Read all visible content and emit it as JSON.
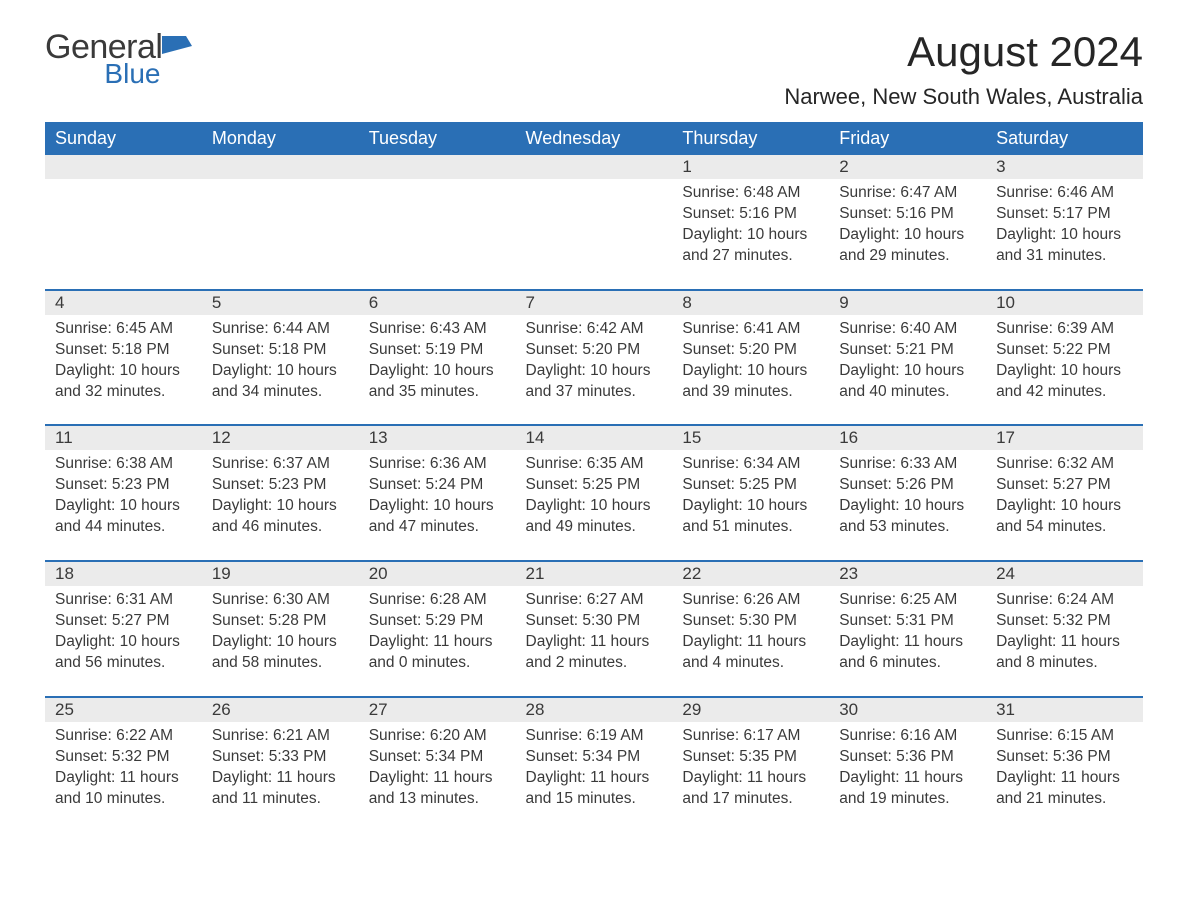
{
  "logo": {
    "general": "General",
    "blue": "Blue",
    "icon_color": "#2a6fb5"
  },
  "title": "August 2024",
  "subtitle": "Narwee, New South Wales, Australia",
  "colors": {
    "header_bg": "#2a6fb5",
    "header_text": "#ffffff",
    "daynum_bg": "#ebebeb",
    "row_border": "#2a6fb5",
    "body_text": "#3a3a3a",
    "page_bg": "#ffffff"
  },
  "typography": {
    "title_fontsize": 42,
    "subtitle_fontsize": 22,
    "header_fontsize": 18,
    "daynum_fontsize": 17,
    "body_fontsize": 15.5
  },
  "weekdays": [
    "Sunday",
    "Monday",
    "Tuesday",
    "Wednesday",
    "Thursday",
    "Friday",
    "Saturday"
  ],
  "weeks": [
    [
      {
        "day": "",
        "sunrise": "",
        "sunset": "",
        "daylight": ""
      },
      {
        "day": "",
        "sunrise": "",
        "sunset": "",
        "daylight": ""
      },
      {
        "day": "",
        "sunrise": "",
        "sunset": "",
        "daylight": ""
      },
      {
        "day": "",
        "sunrise": "",
        "sunset": "",
        "daylight": ""
      },
      {
        "day": "1",
        "sunrise": "Sunrise: 6:48 AM",
        "sunset": "Sunset: 5:16 PM",
        "daylight": "Daylight: 10 hours and 27 minutes."
      },
      {
        "day": "2",
        "sunrise": "Sunrise: 6:47 AM",
        "sunset": "Sunset: 5:16 PM",
        "daylight": "Daylight: 10 hours and 29 minutes."
      },
      {
        "day": "3",
        "sunrise": "Sunrise: 6:46 AM",
        "sunset": "Sunset: 5:17 PM",
        "daylight": "Daylight: 10 hours and 31 minutes."
      }
    ],
    [
      {
        "day": "4",
        "sunrise": "Sunrise: 6:45 AM",
        "sunset": "Sunset: 5:18 PM",
        "daylight": "Daylight: 10 hours and 32 minutes."
      },
      {
        "day": "5",
        "sunrise": "Sunrise: 6:44 AM",
        "sunset": "Sunset: 5:18 PM",
        "daylight": "Daylight: 10 hours and 34 minutes."
      },
      {
        "day": "6",
        "sunrise": "Sunrise: 6:43 AM",
        "sunset": "Sunset: 5:19 PM",
        "daylight": "Daylight: 10 hours and 35 minutes."
      },
      {
        "day": "7",
        "sunrise": "Sunrise: 6:42 AM",
        "sunset": "Sunset: 5:20 PM",
        "daylight": "Daylight: 10 hours and 37 minutes."
      },
      {
        "day": "8",
        "sunrise": "Sunrise: 6:41 AM",
        "sunset": "Sunset: 5:20 PM",
        "daylight": "Daylight: 10 hours and 39 minutes."
      },
      {
        "day": "9",
        "sunrise": "Sunrise: 6:40 AM",
        "sunset": "Sunset: 5:21 PM",
        "daylight": "Daylight: 10 hours and 40 minutes."
      },
      {
        "day": "10",
        "sunrise": "Sunrise: 6:39 AM",
        "sunset": "Sunset: 5:22 PM",
        "daylight": "Daylight: 10 hours and 42 minutes."
      }
    ],
    [
      {
        "day": "11",
        "sunrise": "Sunrise: 6:38 AM",
        "sunset": "Sunset: 5:23 PM",
        "daylight": "Daylight: 10 hours and 44 minutes."
      },
      {
        "day": "12",
        "sunrise": "Sunrise: 6:37 AM",
        "sunset": "Sunset: 5:23 PM",
        "daylight": "Daylight: 10 hours and 46 minutes."
      },
      {
        "day": "13",
        "sunrise": "Sunrise: 6:36 AM",
        "sunset": "Sunset: 5:24 PM",
        "daylight": "Daylight: 10 hours and 47 minutes."
      },
      {
        "day": "14",
        "sunrise": "Sunrise: 6:35 AM",
        "sunset": "Sunset: 5:25 PM",
        "daylight": "Daylight: 10 hours and 49 minutes."
      },
      {
        "day": "15",
        "sunrise": "Sunrise: 6:34 AM",
        "sunset": "Sunset: 5:25 PM",
        "daylight": "Daylight: 10 hours and 51 minutes."
      },
      {
        "day": "16",
        "sunrise": "Sunrise: 6:33 AM",
        "sunset": "Sunset: 5:26 PM",
        "daylight": "Daylight: 10 hours and 53 minutes."
      },
      {
        "day": "17",
        "sunrise": "Sunrise: 6:32 AM",
        "sunset": "Sunset: 5:27 PM",
        "daylight": "Daylight: 10 hours and 54 minutes."
      }
    ],
    [
      {
        "day": "18",
        "sunrise": "Sunrise: 6:31 AM",
        "sunset": "Sunset: 5:27 PM",
        "daylight": "Daylight: 10 hours and 56 minutes."
      },
      {
        "day": "19",
        "sunrise": "Sunrise: 6:30 AM",
        "sunset": "Sunset: 5:28 PM",
        "daylight": "Daylight: 10 hours and 58 minutes."
      },
      {
        "day": "20",
        "sunrise": "Sunrise: 6:28 AM",
        "sunset": "Sunset: 5:29 PM",
        "daylight": "Daylight: 11 hours and 0 minutes."
      },
      {
        "day": "21",
        "sunrise": "Sunrise: 6:27 AM",
        "sunset": "Sunset: 5:30 PM",
        "daylight": "Daylight: 11 hours and 2 minutes."
      },
      {
        "day": "22",
        "sunrise": "Sunrise: 6:26 AM",
        "sunset": "Sunset: 5:30 PM",
        "daylight": "Daylight: 11 hours and 4 minutes."
      },
      {
        "day": "23",
        "sunrise": "Sunrise: 6:25 AM",
        "sunset": "Sunset: 5:31 PM",
        "daylight": "Daylight: 11 hours and 6 minutes."
      },
      {
        "day": "24",
        "sunrise": "Sunrise: 6:24 AM",
        "sunset": "Sunset: 5:32 PM",
        "daylight": "Daylight: 11 hours and 8 minutes."
      }
    ],
    [
      {
        "day": "25",
        "sunrise": "Sunrise: 6:22 AM",
        "sunset": "Sunset: 5:32 PM",
        "daylight": "Daylight: 11 hours and 10 minutes."
      },
      {
        "day": "26",
        "sunrise": "Sunrise: 6:21 AM",
        "sunset": "Sunset: 5:33 PM",
        "daylight": "Daylight: 11 hours and 11 minutes."
      },
      {
        "day": "27",
        "sunrise": "Sunrise: 6:20 AM",
        "sunset": "Sunset: 5:34 PM",
        "daylight": "Daylight: 11 hours and 13 minutes."
      },
      {
        "day": "28",
        "sunrise": "Sunrise: 6:19 AM",
        "sunset": "Sunset: 5:34 PM",
        "daylight": "Daylight: 11 hours and 15 minutes."
      },
      {
        "day": "29",
        "sunrise": "Sunrise: 6:17 AM",
        "sunset": "Sunset: 5:35 PM",
        "daylight": "Daylight: 11 hours and 17 minutes."
      },
      {
        "day": "30",
        "sunrise": "Sunrise: 6:16 AM",
        "sunset": "Sunset: 5:36 PM",
        "daylight": "Daylight: 11 hours and 19 minutes."
      },
      {
        "day": "31",
        "sunrise": "Sunrise: 6:15 AM",
        "sunset": "Sunset: 5:36 PM",
        "daylight": "Daylight: 11 hours and 21 minutes."
      }
    ]
  ]
}
